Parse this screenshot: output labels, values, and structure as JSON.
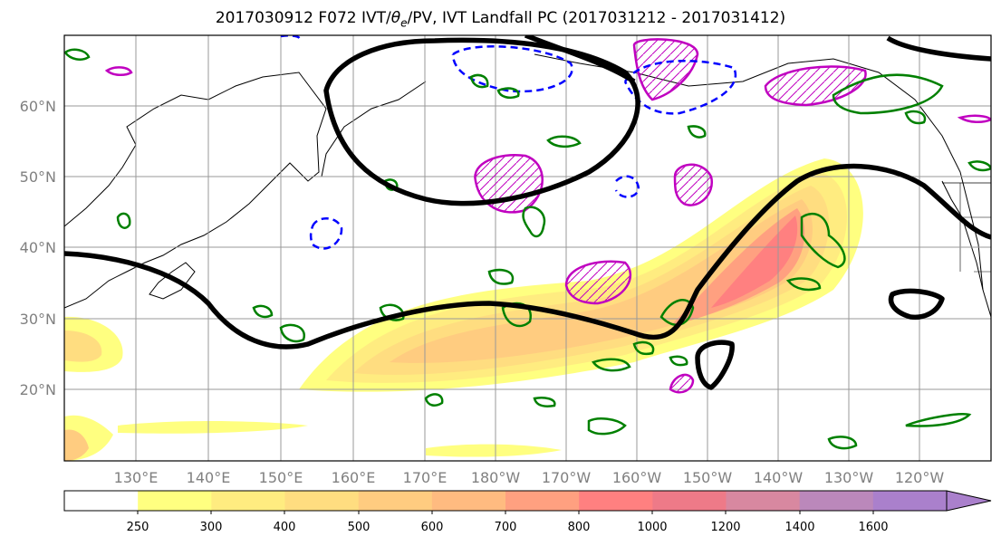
{
  "title_parts": {
    "prefix": "2017030912 F072 IVT/",
    "theta_symbol": "θ",
    "theta_subscript": "e",
    "suffix": "/PV, IVT Landfall PC (2017031212 - 2017031412)"
  },
  "map": {
    "lon_labels": [
      "130°E",
      "140°E",
      "150°E",
      "160°E",
      "170°E",
      "180°W",
      "170°W",
      "160°W",
      "150°W",
      "140°W",
      "130°W",
      "120°W"
    ],
    "lat_labels": [
      "60°N",
      "50°N",
      "40°N",
      "30°N",
      "20°N"
    ]
  },
  "colorbar": {
    "tick_labels": [
      "250",
      "300",
      "400",
      "500",
      "600",
      "700",
      "800",
      "1000",
      "1200",
      "1400",
      "1600"
    ],
    "colors": [
      "#ffffff",
      "#ffff80",
      "#ffec80",
      "#ffdd80",
      "#ffcc80",
      "#ffbb80",
      "#ffa080",
      "#ff8080",
      "#ee7a88",
      "#d888a0",
      "#bb88bb",
      "#aa80cc"
    ]
  },
  "legend_colors": {
    "ivt_low": "#ffff80",
    "ivt_high": "#ff8080",
    "pv_contour": "#000000",
    "theta_positive": "#008000",
    "theta_negative": "#0000ff",
    "pc_contour": "#c000c0"
  }
}
